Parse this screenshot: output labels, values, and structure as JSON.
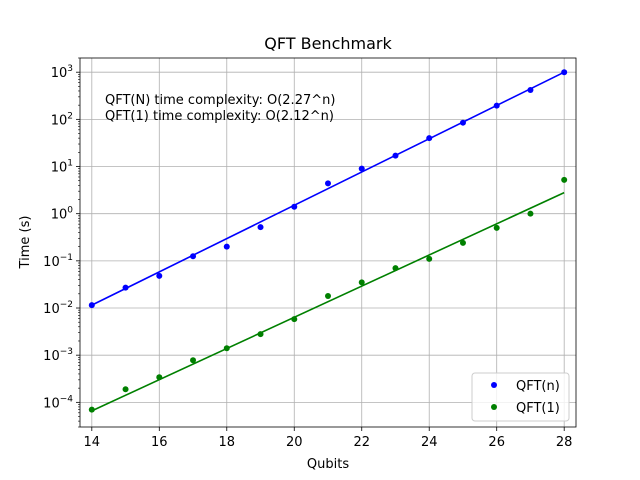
{
  "chart_data": {
    "type": "scatter",
    "title": "QFT Benchmark",
    "xlabel": "Qubits",
    "ylabel": "Time (s)",
    "xlim": [
      13.65,
      28.35
    ],
    "ylim": [
      3e-05,
      2000
    ],
    "yscale": "log",
    "grid": true,
    "legend_position": "lower-right",
    "x_ticks": [
      14,
      16,
      18,
      20,
      22,
      24,
      26,
      28
    ],
    "y_ticks": [
      {
        "value": 0.0001,
        "base": "10",
        "exp": "−4"
      },
      {
        "value": 0.001,
        "base": "10",
        "exp": "−3"
      },
      {
        "value": 0.01,
        "base": "10",
        "exp": "−2"
      },
      {
        "value": 0.1,
        "base": "10",
        "exp": "−1"
      },
      {
        "value": 1,
        "base": "10",
        "exp": "0"
      },
      {
        "value": 10,
        "base": "10",
        "exp": "1"
      },
      {
        "value": 100,
        "base": "10",
        "exp": "2"
      },
      {
        "value": 1000,
        "base": "10",
        "exp": "3"
      }
    ],
    "annotations": [
      "QFT(N) time complexity: O(2.27^n)",
      "QFT(1) time complexity: O(2.12^n)"
    ],
    "series": [
      {
        "name": "QFT(n)",
        "color": "#0000ff",
        "x": [
          14,
          15,
          16,
          17,
          18,
          19,
          20,
          21,
          22,
          23,
          24,
          25,
          26,
          27,
          28
        ],
        "y": [
          0.0115,
          0.027,
          0.048,
          0.125,
          0.2,
          0.52,
          1.4,
          4.4,
          9.0,
          17.0,
          40.0,
          85.0,
          195.0,
          420.0,
          1000.0
        ],
        "fit": {
          "x": [
            14,
            28
          ],
          "y": [
            0.0115,
            1000.0
          ]
        }
      },
      {
        "name": "QFT(1)",
        "color": "#008000",
        "x": [
          14,
          15,
          16,
          17,
          18,
          19,
          20,
          21,
          22,
          23,
          24,
          25,
          26,
          27,
          28
        ],
        "y": [
          7e-05,
          0.00019,
          0.00034,
          0.00078,
          0.0014,
          0.0028,
          0.0058,
          0.018,
          0.035,
          0.07,
          0.11,
          0.24,
          0.5,
          1.0,
          5.2
        ],
        "fit": {
          "x": [
            14,
            28
          ],
          "y": [
            6.6e-05,
            2.8
          ]
        }
      }
    ]
  }
}
